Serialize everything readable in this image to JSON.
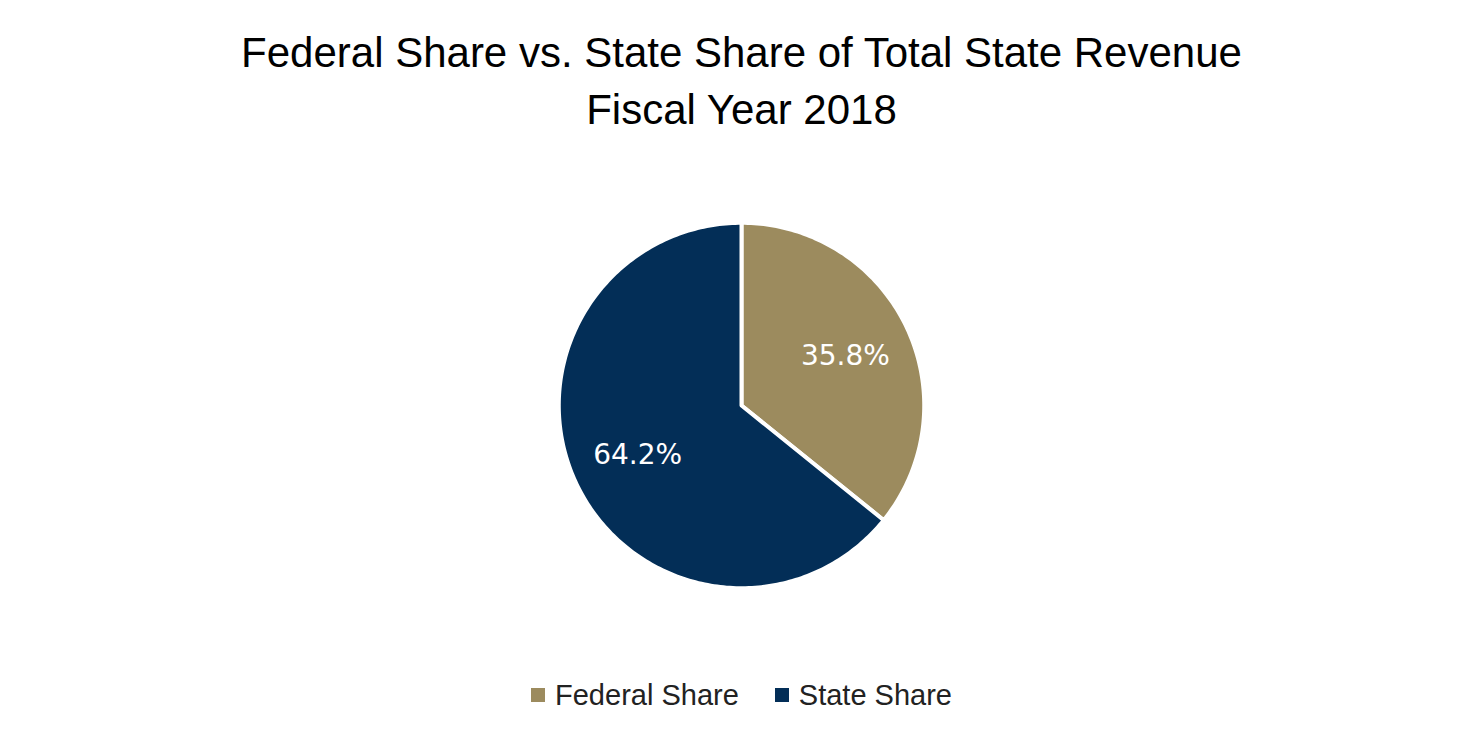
{
  "chart_data": {
    "type": "pie",
    "title": "Federal Share vs. State Share of Total State Revenue",
    "subtitle": "Fiscal Year 2018",
    "categories": [
      "Federal Share",
      "State Share"
    ],
    "values": [
      35.8,
      64.2
    ],
    "value_labels": [
      "35.8%",
      "64.2%"
    ],
    "colors": [
      "#9c8b5e",
      "#032e57"
    ],
    "data_labels": true,
    "legend": "bottom"
  }
}
